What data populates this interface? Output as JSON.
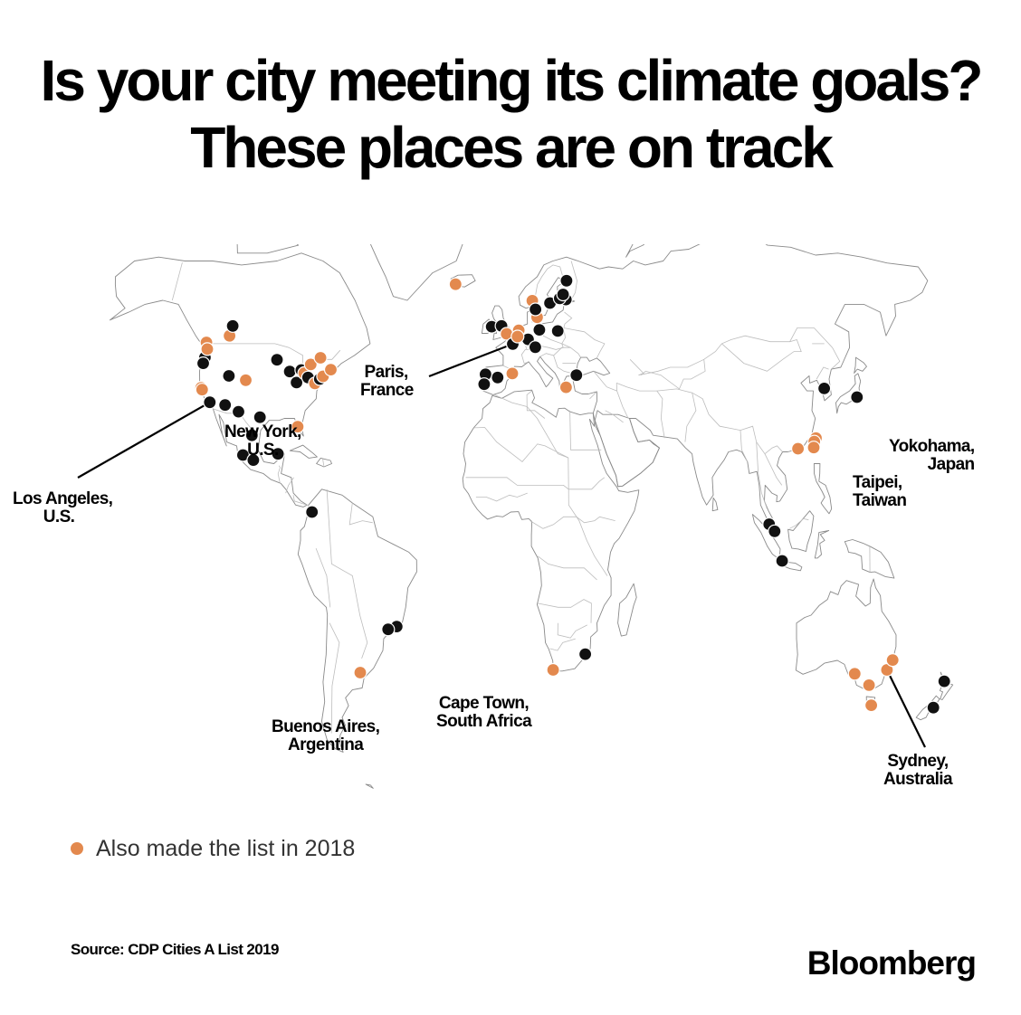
{
  "header": {
    "title": "Is your city meeting its climate goals? These places are on track"
  },
  "colors": {
    "current": "#111111",
    "previous": "#e3894e",
    "land": "#e8e8e8",
    "coast": "#8a8a8a",
    "background": "#ffffff"
  },
  "map": {
    "projection": "robinson-like",
    "cities": [
      {
        "lon": -123.1,
        "lat": 49.3,
        "also_2018": true
      },
      {
        "lon": -122.7,
        "lat": 45.5,
        "also_2018": false
      },
      {
        "lon": -122.3,
        "lat": 47.6,
        "also_2018": true
      },
      {
        "lon": -123.0,
        "lat": 44.0,
        "also_2018": false
      },
      {
        "lon": -114.1,
        "lat": 51.0,
        "also_2018": true
      },
      {
        "lon": -113.5,
        "lat": 53.5,
        "also_2018": false
      },
      {
        "lon": -122.4,
        "lat": 37.8,
        "also_2018": true
      },
      {
        "lon": -121.9,
        "lat": 37.3,
        "also_2018": true
      },
      {
        "lon": -118.2,
        "lat": 34.1,
        "also_2018": false
      },
      {
        "lon": -112.0,
        "lat": 33.4,
        "also_2018": false
      },
      {
        "lon": -111.9,
        "lat": 40.8,
        "also_2018": false
      },
      {
        "lon": -104.9,
        "lat": 39.7,
        "also_2018": true
      },
      {
        "lon": -97.7,
        "lat": 30.3,
        "also_2018": false
      },
      {
        "lon": -93.3,
        "lat": 44.9,
        "also_2018": false
      },
      {
        "lon": -87.6,
        "lat": 41.9,
        "also_2018": false
      },
      {
        "lon": -83.0,
        "lat": 42.3,
        "also_2018": false
      },
      {
        "lon": -84.4,
        "lat": 39.1,
        "also_2018": false
      },
      {
        "lon": -81.7,
        "lat": 41.5,
        "also_2018": true
      },
      {
        "lon": -79.4,
        "lat": 43.7,
        "also_2018": true
      },
      {
        "lon": -80.0,
        "lat": 40.4,
        "also_2018": false
      },
      {
        "lon": -75.7,
        "lat": 45.4,
        "also_2018": true
      },
      {
        "lon": -77.0,
        "lat": 38.9,
        "also_2018": true
      },
      {
        "lon": -75.2,
        "lat": 40.0,
        "also_2018": false
      },
      {
        "lon": -74.0,
        "lat": 40.7,
        "also_2018": true
      },
      {
        "lon": -71.1,
        "lat": 42.4,
        "also_2018": true
      },
      {
        "lon": -82.5,
        "lat": 27.9,
        "also_2018": true
      },
      {
        "lon": -106.4,
        "lat": 31.7,
        "also_2018": false
      },
      {
        "lon": -103.3,
        "lat": 20.7,
        "also_2018": false
      },
      {
        "lon": -99.1,
        "lat": 19.4,
        "also_2018": false
      },
      {
        "lon": -100.3,
        "lat": 25.7,
        "also_2018": false
      },
      {
        "lon": -89.6,
        "lat": 21.0,
        "also_2018": false
      },
      {
        "lon": -75.6,
        "lat": 6.2,
        "also_2018": false
      },
      {
        "lon": -43.2,
        "lat": -22.9,
        "also_2018": false
      },
      {
        "lon": -46.6,
        "lat": -23.6,
        "also_2018": false
      },
      {
        "lon": -58.4,
        "lat": -34.6,
        "also_2018": true
      },
      {
        "lon": -21.9,
        "lat": 64.1,
        "also_2018": true
      },
      {
        "lon": -6.3,
        "lat": 53.3,
        "also_2018": false
      },
      {
        "lon": -2.2,
        "lat": 53.5,
        "also_2018": false
      },
      {
        "lon": -0.1,
        "lat": 51.5,
        "also_2018": true
      },
      {
        "lon": 2.4,
        "lat": 48.9,
        "also_2018": false
      },
      {
        "lon": 4.9,
        "lat": 52.4,
        "also_2018": true
      },
      {
        "lon": 8.7,
        "lat": 50.1,
        "also_2018": false
      },
      {
        "lon": 11.6,
        "lat": 48.1,
        "also_2018": false
      },
      {
        "lon": 13.4,
        "lat": 52.5,
        "also_2018": false
      },
      {
        "lon": 4.4,
        "lat": 50.8,
        "also_2018": true
      },
      {
        "lon": 2.2,
        "lat": 41.4,
        "also_2018": true
      },
      {
        "lon": -3.7,
        "lat": 40.4,
        "also_2018": false
      },
      {
        "lon": -8.6,
        "lat": 41.2,
        "also_2018": false
      },
      {
        "lon": -9.1,
        "lat": 38.7,
        "also_2018": false
      },
      {
        "lon": 12.6,
        "lat": 55.7,
        "also_2018": true
      },
      {
        "lon": 10.7,
        "lat": 59.9,
        "also_2018": true
      },
      {
        "lon": 18.1,
        "lat": 59.3,
        "also_2018": false
      },
      {
        "lon": 11.97,
        "lat": 57.7,
        "also_2018": false
      },
      {
        "lon": 24.9,
        "lat": 60.2,
        "also_2018": false
      },
      {
        "lon": 22.3,
        "lat": 60.5,
        "also_2018": false
      },
      {
        "lon": 23.8,
        "lat": 61.5,
        "also_2018": false
      },
      {
        "lon": 25.5,
        "lat": 65.0,
        "also_2018": false
      },
      {
        "lon": 28.0,
        "lat": 41.0,
        "also_2018": false
      },
      {
        "lon": 23.7,
        "lat": 37.9,
        "also_2018": true
      },
      {
        "lon": 21.0,
        "lat": 52.2,
        "also_2018": false
      },
      {
        "lon": 101.7,
        "lat": 3.1,
        "also_2018": false
      },
      {
        "lon": 103.8,
        "lat": 1.3,
        "also_2018": false
      },
      {
        "lon": 106.8,
        "lat": -6.2,
        "also_2018": false
      },
      {
        "lon": 114.1,
        "lat": 22.3,
        "also_2018": true
      },
      {
        "lon": 121.5,
        "lat": 25.0,
        "also_2018": true
      },
      {
        "lon": 120.7,
        "lat": 24.1,
        "also_2018": true
      },
      {
        "lon": 120.3,
        "lat": 22.6,
        "also_2018": true
      },
      {
        "lon": 127.0,
        "lat": 37.6,
        "also_2018": false
      },
      {
        "lon": 139.6,
        "lat": 35.4,
        "also_2018": false
      },
      {
        "lon": 18.4,
        "lat": -33.9,
        "also_2018": true
      },
      {
        "lon": 31.0,
        "lat": -29.9,
        "also_2018": false
      },
      {
        "lon": 138.6,
        "lat": -34.9,
        "also_2018": true
      },
      {
        "lon": 145.0,
        "lat": -37.8,
        "also_2018": true
      },
      {
        "lon": 147.3,
        "lat": -42.9,
        "also_2018": true
      },
      {
        "lon": 151.2,
        "lat": -33.9,
        "also_2018": true
      },
      {
        "lon": 152.9,
        "lat": -31.4,
        "also_2018": true
      },
      {
        "lon": 174.8,
        "lat": -36.8,
        "also_2018": false
      },
      {
        "lon": 172.6,
        "lat": -43.5,
        "also_2018": false
      }
    ],
    "labels": {
      "los_angeles": {
        "line1": "Los Angeles,",
        "line2": "U.S."
      },
      "new_york": {
        "line1": "New York,",
        "line2": "U.S."
      },
      "paris": {
        "line1": "Paris,",
        "line2": "France"
      },
      "yokohama": {
        "line1": "Yokohama,",
        "line2": "Japan"
      },
      "taipei": {
        "line1": "Taipei,",
        "line2": "Taiwan"
      },
      "buenos_aires": {
        "line1": "Buenos Aires,",
        "line2": "Argentina"
      },
      "cape_town": {
        "line1": "Cape Town,",
        "line2": "South Africa"
      },
      "sydney": {
        "line1": "Sydney,",
        "line2": "Australia"
      }
    }
  },
  "legend": {
    "label": "Also made the list in 2018"
  },
  "footer": {
    "source": "Source: CDP Cities A List 2019",
    "brand": "Bloomberg"
  }
}
